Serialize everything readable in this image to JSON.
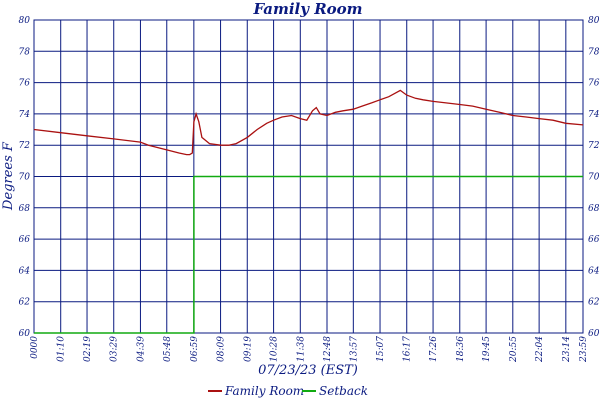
{
  "chart_data": {
    "type": "line",
    "title": "Family Room",
    "xlabel": "07/23/23 (EST)",
    "ylabel": "Degrees F",
    "ylim": [
      60,
      80
    ],
    "yticks": [
      60,
      62,
      64,
      66,
      68,
      70,
      72,
      74,
      76,
      78,
      80
    ],
    "xlim": [
      0,
      1439
    ],
    "xtick_labels": [
      "0000",
      "01:10",
      "02:19",
      "03:29",
      "04:39",
      "05:48",
      "06:59",
      "08:09",
      "09:19",
      "10:28",
      "11:38",
      "12:48",
      "13:57",
      "15:07",
      "16:17",
      "17:26",
      "18:36",
      "19:45",
      "20:55",
      "22:04",
      "23:14",
      "23:59"
    ],
    "grid": true,
    "legend_position": "bottom-center",
    "colors": {
      "grid": "#0a1a80",
      "text": "#0a1a80",
      "background": "#ffffff"
    },
    "series": [
      {
        "name": "Family Room",
        "color": "#aa1111",
        "x": [
          "0000",
          "01:10",
          "02:19",
          "03:29",
          "04:39",
          "05:00",
          "05:48",
          "06:20",
          "06:40",
          "06:48",
          "06:55",
          "06:59",
          "07:05",
          "07:12",
          "07:20",
          "07:40",
          "08:09",
          "08:30",
          "08:50",
          "09:19",
          "09:45",
          "10:10",
          "10:28",
          "10:50",
          "11:15",
          "11:38",
          "11:55",
          "12:10",
          "12:20",
          "12:30",
          "12:48",
          "13:10",
          "13:30",
          "13:57",
          "14:20",
          "14:45",
          "15:07",
          "15:30",
          "15:45",
          "16:00",
          "16:17",
          "16:40",
          "17:00",
          "17:26",
          "18:00",
          "18:36",
          "19:10",
          "19:45",
          "20:20",
          "20:55",
          "21:30",
          "22:04",
          "22:40",
          "23:14",
          "23:59"
        ],
        "values": [
          73.0,
          72.8,
          72.6,
          72.4,
          72.2,
          72.0,
          71.7,
          71.5,
          71.4,
          71.4,
          71.5,
          73.5,
          74.0,
          73.5,
          72.5,
          72.1,
          72.0,
          72.0,
          72.1,
          72.5,
          73.0,
          73.4,
          73.6,
          73.8,
          73.9,
          73.7,
          73.6,
          74.2,
          74.4,
          74.0,
          73.9,
          74.1,
          74.2,
          74.3,
          74.5,
          74.7,
          74.9,
          75.1,
          75.3,
          75.5,
          75.2,
          75.0,
          74.9,
          74.8,
          74.7,
          74.6,
          74.5,
          74.3,
          74.1,
          73.9,
          73.8,
          73.7,
          73.6,
          73.4,
          73.3
        ]
      },
      {
        "name": "Setback",
        "color": "#11aa11",
        "x": [
          "0000",
          "06:59",
          "06:59",
          "23:59"
        ],
        "values": [
          60,
          60,
          70,
          70
        ]
      }
    ]
  }
}
